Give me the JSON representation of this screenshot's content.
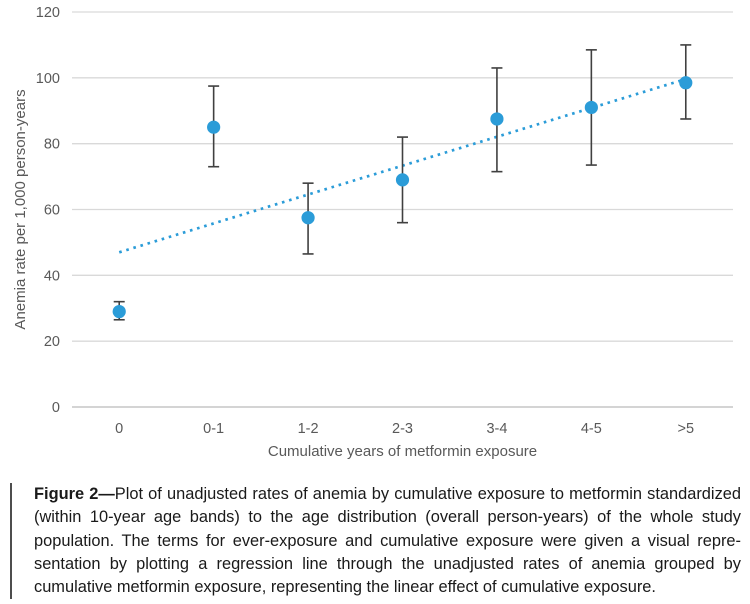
{
  "chart_data": {
    "type": "scatter",
    "title": "",
    "xlabel": "Cumulative years of metformin exposure",
    "ylabel": "Anemia rate per 1,000 person-years",
    "categories": [
      "0",
      "0-1",
      "1-2",
      "2-3",
      "3-4",
      "4-5",
      ">5"
    ],
    "series": [
      {
        "name": "Unadjusted anemia rate",
        "values": [
          29,
          85,
          57.5,
          69,
          87.5,
          91,
          98.5
        ],
        "error_low": [
          26.5,
          73,
          46.5,
          56,
          71.5,
          73.5,
          87.5
        ],
        "error_high": [
          32,
          97.5,
          68,
          82,
          103,
          108.5,
          110
        ]
      }
    ],
    "trendline": {
      "name": "regression-line",
      "style": "dotted",
      "start_category_index": 0,
      "end_category_index": 6,
      "start_value": 47,
      "end_value": 100
    },
    "ylim": [
      0,
      120
    ],
    "yticks": [
      0,
      20,
      40,
      60,
      80,
      100,
      120
    ],
    "grid": true,
    "legend": "none",
    "colors": {
      "point": "#2b9cd8",
      "trend": "#2b9cd8",
      "error_bar": "#404040",
      "gridline": "#d9d9d9",
      "axis_line": "#c6c6c6",
      "tick_label": "#595959",
      "axis_title": "#595959"
    }
  },
  "caption": {
    "label": "Figure 2—",
    "lines": [
      "Plot of unadjusted rates of anemia by cumulative exposure to metformin standardized",
      "(within 10-year age bands) to the age distribution (overall person-years) of the whole study",
      "population. The terms for ever-exposure and cumulative exposure were given a visual repre-",
      "sentation by plotting a regression line through the unadjusted rates of anemia grouped by",
      "cumulative metformin exposure, representing the linear effect of cumulative exposure."
    ]
  }
}
